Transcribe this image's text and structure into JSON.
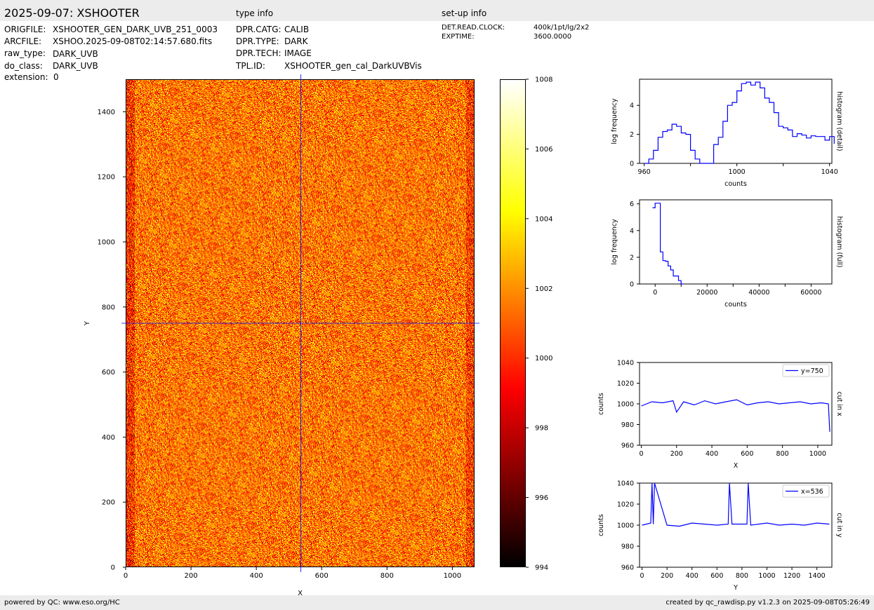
{
  "header": {
    "title": "2025-09-07: XSHOOTER",
    "type_info_label": "type info",
    "setup_info_label": "set-up info"
  },
  "file_info": [
    {
      "key": "ORIGFILE:",
      "value": "XSHOOTER_GEN_DARK_UVB_251_0003"
    },
    {
      "key": "ARCFILE:",
      "value": "XSHOO.2025-09-08T02:14:57.680.fits"
    },
    {
      "key": "raw_type:",
      "value": "DARK_UVB"
    },
    {
      "key": "do_class:",
      "value": "DARK_UVB"
    },
    {
      "key": "extension:",
      "value": "0"
    }
  ],
  "type_info": [
    {
      "key": "DPR.CATG:",
      "value": "CALIB"
    },
    {
      "key": "DPR.TYPE:",
      "value": "DARK"
    },
    {
      "key": "DPR.TECH:",
      "value": "IMAGE"
    },
    {
      "key": "TPL.ID:",
      "value": "XSHOOTER_gen_cal_DarkUVBVis"
    }
  ],
  "setup_info": [
    {
      "key": "DET.READ.CLOCK:",
      "value": "400k/1pt/lg/2x2"
    },
    {
      "key": "EXPTIME:",
      "value": "3600.0000"
    }
  ],
  "footer": {
    "left": "powered by QC: www.eso.org/HC",
    "right": "created by qc_rawdisp.py v1.2.3 on 2025-09-08T05:26:49"
  },
  "chart_data": [
    {
      "type": "heatmap",
      "id": "image",
      "xlabel": "X",
      "ylabel": "Y",
      "xlim": [
        0,
        1068
      ],
      "ylim": [
        0,
        1500
      ],
      "xticks": [
        0,
        200,
        400,
        600,
        800,
        1000
      ],
      "yticks": [
        0,
        200,
        400,
        600,
        800,
        1000,
        1200,
        1400
      ],
      "colormap": "hot",
      "cut_x": 536,
      "cut_y": 750,
      "crosshair_color": "#0000ff",
      "colorbar": {
        "min": 994,
        "max": 1008,
        "ticks": [
          994,
          996,
          998,
          1000,
          1002,
          1004,
          1006,
          1008
        ]
      }
    },
    {
      "type": "line",
      "id": "hist-detail",
      "xlabel": "counts",
      "ylabel": "log frequency",
      "side_label": "histogram (detail)",
      "xlim": [
        958,
        1041
      ],
      "ylim": [
        0,
        5.8
      ],
      "xticks": [
        960,
        1000,
        1040
      ],
      "xminor": [
        980,
        1020
      ],
      "yticks": [
        0,
        2,
        4
      ],
      "color": "#0000ff",
      "x": [
        960,
        962,
        964,
        966,
        968,
        970,
        972,
        974,
        976,
        978,
        980,
        982,
        984,
        986,
        988,
        990,
        992,
        994,
        996,
        998,
        1000,
        1002,
        1004,
        1006,
        1008,
        1010,
        1012,
        1014,
        1016,
        1018,
        1020,
        1022,
        1024,
        1026,
        1028,
        1030,
        1032,
        1034,
        1036,
        1038,
        1040,
        1042
      ],
      "y": [
        0,
        0.3,
        0.9,
        1.8,
        2.2,
        2.3,
        2.7,
        2.55,
        2.1,
        2.0,
        0.9,
        0.3,
        0,
        0,
        0,
        1.3,
        1.8,
        2.9,
        4.0,
        4.2,
        5.0,
        5.5,
        5.6,
        5.4,
        5.6,
        5.2,
        4.5,
        4.2,
        3.5,
        2.55,
        2.45,
        2.3,
        1.85,
        2.05,
        1.95,
        1.75,
        1.9,
        1.85,
        1.85,
        1.6,
        1.85,
        1.35
      ]
    },
    {
      "type": "line",
      "id": "hist-full",
      "xlabel": "counts",
      "ylabel": "log frequency",
      "side_label": "histogram (full)",
      "xlim": [
        -6000,
        68000
      ],
      "ylim": [
        0,
        6.3
      ],
      "xticks": [
        0,
        20000,
        40000,
        60000
      ],
      "xminor": [
        10000,
        30000,
        50000
      ],
      "yticks": [
        0,
        2,
        4,
        6
      ],
      "color": "#0000ff",
      "x": [
        -1000,
        0,
        1000,
        2000,
        3000,
        4000,
        5000,
        6000,
        7000,
        8000,
        9000,
        10000,
        11000
      ],
      "y": [
        5.7,
        6.05,
        6.05,
        2.4,
        1.75,
        1.7,
        1.35,
        1.05,
        0.6,
        0.6,
        0.25,
        0,
        0
      ]
    },
    {
      "type": "line",
      "id": "cut-x",
      "xlabel": "X",
      "ylabel": "counts",
      "side_label": "cut in x",
      "legend": "y=750",
      "legend_position": "top-right",
      "xlim": [
        -10,
        1080
      ],
      "ylim": [
        960,
        1040
      ],
      "xticks": [
        0,
        200,
        400,
        600,
        800,
        1000
      ],
      "yticks": [
        960,
        980,
        1000,
        1020,
        1040
      ],
      "color": "#0000ff",
      "x": [
        0,
        60,
        120,
        180,
        200,
        240,
        300,
        360,
        420,
        480,
        540,
        600,
        660,
        720,
        780,
        840,
        900,
        960,
        1020,
        1060,
        1068
      ],
      "y": [
        998,
        1002,
        1001,
        1003,
        992,
        1002,
        999,
        1003,
        1000,
        1002,
        1004,
        999,
        1001,
        1002,
        1000,
        1001,
        1002,
        1000,
        1001,
        1000,
        973
      ]
    },
    {
      "type": "line",
      "id": "cut-y",
      "xlabel": "Y",
      "ylabel": "counts",
      "side_label": "cut in y",
      "legend": "x=536",
      "legend_position": "top-right",
      "xlim": [
        -20,
        1520
      ],
      "ylim": [
        960,
        1040
      ],
      "xticks": [
        0,
        200,
        400,
        600,
        800,
        1000,
        1200,
        1400
      ],
      "yticks": [
        960,
        980,
        1000,
        1020,
        1040
      ],
      "color": "#0000ff",
      "x": [
        0,
        70,
        80,
        90,
        100,
        200,
        300,
        400,
        500,
        600,
        690,
        700,
        720,
        840,
        850,
        870,
        1000,
        1100,
        1200,
        1300,
        1400,
        1500
      ],
      "y": [
        1000,
        1002,
        1040,
        1001,
        1040,
        1000,
        999,
        1002,
        1001,
        1000,
        1001,
        1040,
        1001,
        1001,
        1040,
        1000,
        1002,
        1000,
        1001,
        1000,
        1002,
        1001
      ]
    }
  ]
}
